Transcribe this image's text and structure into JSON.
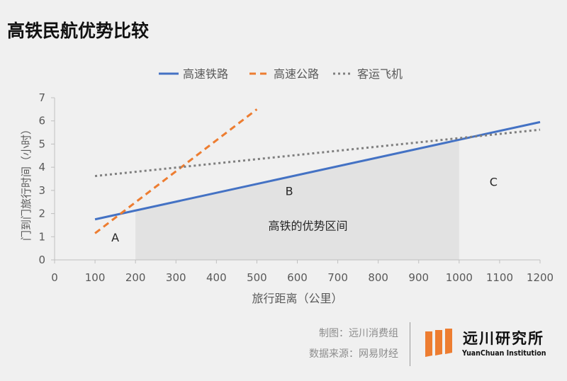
{
  "title": "高铁民航优势比较",
  "footer": {
    "credit": "制图：远川消费组",
    "source": "数据来源：网易财经"
  },
  "brand": {
    "name_cn": "远川研究所",
    "name_en": "YuanChuan Institution",
    "logo_icon": "yuanchuan-logo-icon"
  },
  "chart_data": {
    "type": "line",
    "title": "",
    "xlabel": "旅行距离（公里）",
    "ylabel": "门到门旅行时间（小时）",
    "xlim": [
      0,
      1200
    ],
    "ylim": [
      0,
      7
    ],
    "xticks": [
      0,
      100,
      200,
      300,
      400,
      500,
      600,
      700,
      800,
      900,
      1000,
      1100,
      1200
    ],
    "yticks": [
      0,
      1,
      2,
      3,
      4,
      5,
      6,
      7
    ],
    "grid": false,
    "legend_position": "top",
    "series": [
      {
        "name": "高速铁路",
        "style": "solid",
        "color": "#4472c4",
        "x": [
          100,
          1200
        ],
        "y": [
          1.75,
          5.95
        ]
      },
      {
        "name": "高速公路",
        "style": "dashed",
        "color": "#ed7d31",
        "x": [
          100,
          500
        ],
        "y": [
          1.15,
          6.5
        ]
      },
      {
        "name": "客运飞机",
        "style": "dotted",
        "color": "#7f7f7f",
        "x": [
          100,
          1200
        ],
        "y": [
          3.62,
          5.62
        ]
      }
    ],
    "shaded_region": {
      "x": [
        200,
        1000
      ],
      "label": "高铁的优势区间",
      "color": "#e2e2e2"
    },
    "annotations": [
      {
        "text": "A",
        "x": 150,
        "y": 0.8
      },
      {
        "text": "B",
        "x": 580,
        "y": 2.8
      },
      {
        "text": "C",
        "x": 1085,
        "y": 3.2
      }
    ]
  }
}
